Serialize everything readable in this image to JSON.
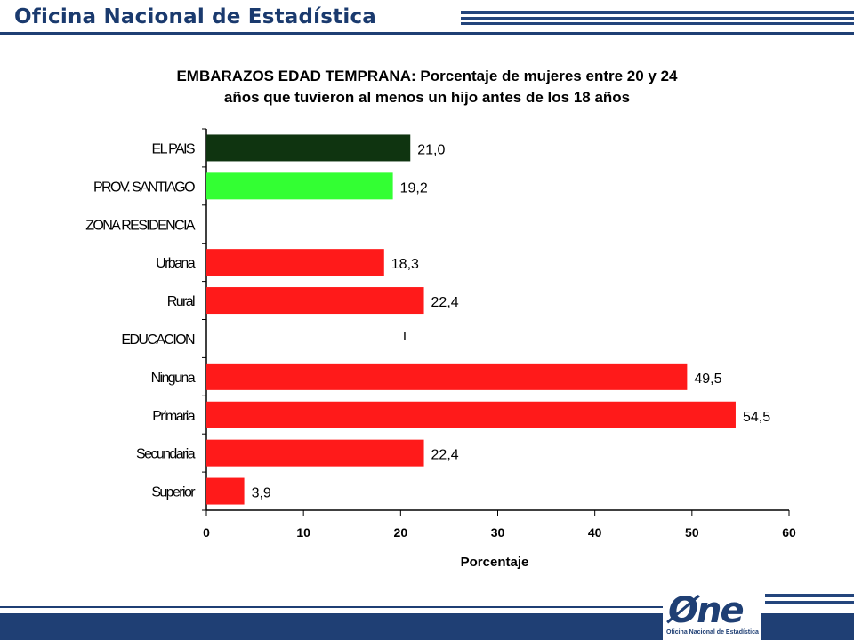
{
  "header": {
    "title": "Oficina Nacional de Estadística"
  },
  "chart_data": {
    "type": "bar",
    "orientation": "horizontal",
    "title": "EMBARAZOS EDAD TEMPRANA: Porcentaje de mujeres entre 20 y 24 años que tuvieron al menos un hijo antes de los 18 años",
    "title_line1": "EMBARAZOS EDAD TEMPRANA: Porcentaje de mujeres entre 20 y 24",
    "title_line2": "años que tuvieron al menos un hijo antes de los 18 años",
    "xlabel": "Porcentaje",
    "ylabel": "",
    "xlim": [
      0,
      60
    ],
    "xticks": [
      "0",
      "10",
      "20",
      "30",
      "40",
      "50",
      "60"
    ],
    "grid": false,
    "stray_mark": "I",
    "categories": [
      "EL PAIS",
      "PROV. SANTIAGO",
      "ZONA RESIDENCIA",
      "Urbana",
      "Rural",
      "EDUCACION",
      "Ninguna",
      "Primaria",
      "Secundaria",
      "Superior"
    ],
    "values": [
      21.0,
      19.2,
      null,
      18.3,
      22.4,
      null,
      49.5,
      54.5,
      22.4,
      3.9
    ],
    "value_labels": [
      "21,0",
      "19,2",
      "",
      "18,3",
      "22,4",
      "",
      "49,5",
      "54,5",
      "22,4",
      "3,9"
    ],
    "colors": [
      "#0f3410",
      "#33ff33",
      "#ff1a1a",
      "#ff1a1a",
      "#ff1a1a",
      "#ff1a1a",
      "#ff1a1a",
      "#ff1a1a",
      "#ff1a1a",
      "#ff1a1a"
    ]
  },
  "footer": {
    "logo_text": "Øne",
    "logo_subtitle": "Oficina Nacional de Estadística"
  }
}
